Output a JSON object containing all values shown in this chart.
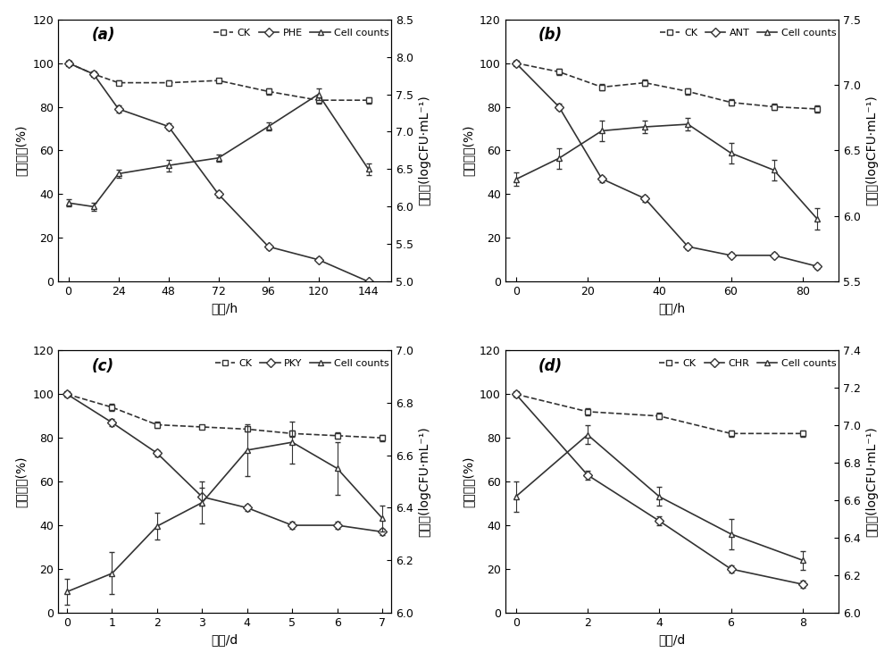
{
  "panel_a": {
    "label": "(a)",
    "xlabel": "时间/h",
    "ylabel_left": "非残留量(%)",
    "ylabel_right": "菌落数(logCFU·mL⁻¹)",
    "legend": [
      "CK",
      "PHE",
      "Cell counts"
    ],
    "x": [
      0,
      12,
      24,
      48,
      72,
      96,
      120,
      144
    ],
    "CK_y": [
      100,
      95,
      91,
      91,
      92,
      87,
      83,
      83
    ],
    "CK_err": [
      1.0,
      1.0,
      1.0,
      1.0,
      1.0,
      1.5,
      1.5,
      1.5
    ],
    "PAH_y": [
      100,
      95,
      79,
      71,
      40,
      16,
      10,
      0
    ],
    "PAH_err": [
      1.0,
      1.0,
      1.5,
      1.5,
      1.5,
      1.0,
      1.0,
      0.5
    ],
    "Cell_y": [
      6.05,
      6.0,
      6.44,
      6.55,
      6.65,
      7.07,
      7.5,
      6.5
    ],
    "Cell_err": [
      0.05,
      0.05,
      0.05,
      0.08,
      0.05,
      0.05,
      0.08,
      0.08
    ],
    "ylim_left": [
      0,
      120
    ],
    "ylim_right": [
      5.0,
      8.5
    ],
    "yticks_left": [
      0,
      20,
      40,
      60,
      80,
      100,
      120
    ],
    "yticks_right": [
      5.0,
      5.5,
      6.0,
      6.5,
      7.0,
      7.5,
      8.0,
      8.5
    ],
    "xticks": [
      0,
      24,
      48,
      72,
      96,
      120,
      144
    ],
    "xlim": [
      -5,
      155
    ]
  },
  "panel_b": {
    "label": "(b)",
    "xlabel": "时间/h",
    "ylabel_left": "蒙残留量(%)",
    "ylabel_right": "菌落数(logCFU·mL⁻¹)",
    "legend": [
      "CK",
      "ANT",
      "Cell counts"
    ],
    "x": [
      0,
      12,
      24,
      36,
      48,
      60,
      72,
      84
    ],
    "CK_y": [
      100,
      96,
      89,
      91,
      87,
      82,
      80,
      79
    ],
    "CK_err": [
      1.0,
      1.5,
      1.5,
      1.5,
      1.5,
      1.5,
      1.5,
      1.5
    ],
    "PAH_y": [
      100,
      80,
      47,
      38,
      16,
      12,
      12,
      7
    ],
    "PAH_err": [
      1.0,
      1.5,
      1.5,
      1.5,
      1.0,
      1.0,
      1.0,
      1.0
    ],
    "Cell_y": [
      6.28,
      6.44,
      6.65,
      6.68,
      6.7,
      6.48,
      6.35,
      5.98
    ],
    "Cell_err": [
      0.05,
      0.08,
      0.08,
      0.05,
      0.05,
      0.08,
      0.08,
      0.08
    ],
    "ylim_left": [
      0,
      120
    ],
    "ylim_right": [
      5.5,
      7.5
    ],
    "yticks_left": [
      0,
      20,
      40,
      60,
      80,
      100,
      120
    ],
    "yticks_right": [
      5.5,
      6.0,
      6.5,
      7.0,
      7.5
    ],
    "xticks": [
      0,
      20,
      40,
      60,
      80
    ],
    "xlim": [
      -3,
      90
    ]
  },
  "panel_c": {
    "label": "(c)",
    "xlabel": "时间/d",
    "ylabel_left": "芬残留量(%)",
    "ylabel_right": "菌落数(logCFU·mL⁻¹)",
    "legend": [
      "CK",
      "PKY",
      "Cell counts"
    ],
    "x": [
      0,
      1,
      2,
      3,
      4,
      5,
      6,
      7
    ],
    "CK_y": [
      100,
      94,
      86,
      85,
      84,
      82,
      81,
      80
    ],
    "CK_err": [
      1.0,
      1.5,
      1.5,
      1.0,
      1.0,
      1.5,
      1.5,
      1.5
    ],
    "PAH_y": [
      100,
      87,
      73,
      53,
      48,
      40,
      40,
      37
    ],
    "PAH_err": [
      1.0,
      1.5,
      1.5,
      4.0,
      1.5,
      1.5,
      1.5,
      1.5
    ],
    "Cell_y": [
      6.08,
      6.15,
      6.33,
      6.42,
      6.62,
      6.65,
      6.55,
      6.36
    ],
    "Cell_err": [
      0.05,
      0.08,
      0.05,
      0.08,
      0.1,
      0.08,
      0.1,
      0.05
    ],
    "ylim_left": [
      0,
      120
    ],
    "ylim_right": [
      6.0,
      7.0
    ],
    "yticks_left": [
      0,
      20,
      40,
      60,
      80,
      100,
      120
    ],
    "yticks_right": [
      6.0,
      6.2,
      6.4,
      6.6,
      6.8,
      7.0
    ],
    "xticks": [
      0,
      1,
      2,
      3,
      4,
      5,
      6,
      7
    ],
    "xlim": [
      -0.2,
      7.2
    ]
  },
  "panel_d": {
    "label": "(d)",
    "xlabel": "时间/d",
    "ylabel_left": "萝残留量(%)",
    "ylabel_right": "菌落数(logCFU·mL⁻¹)",
    "legend": [
      "CK",
      "CHR",
      "Cell counts"
    ],
    "x": [
      0,
      2,
      4,
      6,
      8
    ],
    "CK_y": [
      100,
      92,
      90,
      82,
      82
    ],
    "CK_err": [
      1.0,
      1.5,
      1.5,
      1.5,
      1.5
    ],
    "PAH_y": [
      100,
      63,
      42,
      20,
      13
    ],
    "PAH_err": [
      1.0,
      2.0,
      2.0,
      1.5,
      1.5
    ],
    "Cell_y": [
      6.62,
      6.95,
      6.62,
      6.42,
      6.28
    ],
    "Cell_err": [
      0.08,
      0.05,
      0.05,
      0.08,
      0.05
    ],
    "ylim_left": [
      0,
      120
    ],
    "ylim_right": [
      6.0,
      7.4
    ],
    "yticks_left": [
      0,
      20,
      40,
      60,
      80,
      100,
      120
    ],
    "yticks_right": [
      6.0,
      6.2,
      6.4,
      6.6,
      6.8,
      7.0,
      7.2,
      7.4
    ],
    "xticks": [
      0,
      2,
      4,
      6,
      8
    ],
    "xlim": [
      -0.3,
      9.0
    ]
  },
  "line_color": "#333333",
  "marker_CK": "s",
  "marker_PAH": "D",
  "marker_Cell": "^",
  "markersize": 5,
  "linewidth": 1.2,
  "capsize": 2,
  "fontsize_label": 10,
  "fontsize_tick": 9,
  "fontsize_legend": 8,
  "fontsize_panel_label": 12
}
